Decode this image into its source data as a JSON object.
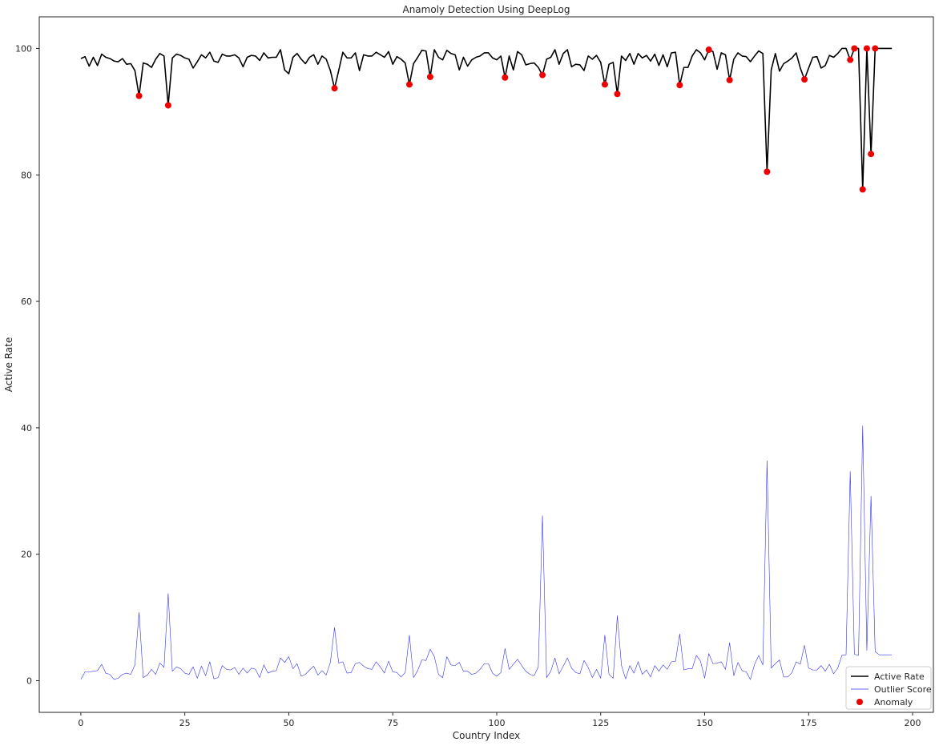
{
  "chart_data": {
    "type": "line",
    "title": "Anamoly Detection Using DeepLog",
    "xlabel": "Country Index",
    "ylabel": "Active Rate",
    "xlim": [
      -10,
      205
    ],
    "ylim": [
      -5,
      105
    ],
    "xticks": [
      0,
      25,
      50,
      75,
      100,
      125,
      150,
      175,
      200
    ],
    "yticks": [
      0,
      20,
      40,
      60,
      80,
      100
    ],
    "grid": false,
    "legend": "bottom-right",
    "series": [
      {
        "name": "Active Rate",
        "color": "#000000",
        "kind": "line",
        "x": [
          0,
          1,
          2,
          3,
          4,
          5,
          6,
          7,
          8,
          9,
          10,
          11,
          12,
          13,
          14,
          15,
          16,
          17,
          18,
          19,
          20,
          21,
          22,
          23,
          24,
          25,
          26,
          27,
          28,
          29,
          30,
          31,
          32,
          33,
          34,
          35,
          36,
          37,
          38,
          39,
          40,
          41,
          42,
          43,
          44,
          45,
          46,
          47,
          48,
          49,
          50,
          51,
          52,
          53,
          54,
          55,
          56,
          57,
          58,
          59,
          60,
          61,
          62,
          63,
          64,
          65,
          66,
          67,
          68,
          69,
          70,
          71,
          72,
          73,
          74,
          75,
          76,
          77,
          78,
          79,
          80,
          81,
          82,
          83,
          84,
          85,
          86,
          87,
          88,
          89,
          90,
          91,
          92,
          93,
          94,
          95,
          96,
          97,
          98,
          99,
          100,
          101,
          102,
          103,
          104,
          105,
          106,
          107,
          108,
          109,
          110,
          111,
          112,
          113,
          114,
          115,
          116,
          117,
          118,
          119,
          120,
          121,
          122,
          123,
          124,
          125,
          126,
          127,
          128,
          129,
          130,
          131,
          132,
          133,
          134,
          135,
          136,
          137,
          138,
          139,
          140,
          141,
          142,
          143,
          144,
          145,
          146,
          147,
          148,
          149,
          150,
          151,
          152,
          153,
          154,
          155,
          156,
          157,
          158,
          159,
          160,
          161,
          162,
          163,
          164,
          165,
          166,
          167,
          168,
          169,
          170,
          171,
          172,
          173,
          174,
          175,
          176,
          177,
          178,
          179,
          180,
          181,
          182,
          183,
          184,
          185,
          186,
          187,
          188,
          189,
          190,
          191,
          192,
          193,
          194,
          195
        ],
        "values": [
          98.4,
          98.7,
          97.2,
          98.6,
          97.3,
          99.1,
          98.6,
          98.4,
          98.0,
          97.9,
          98.4,
          97.5,
          97.6,
          96.5,
          92.5,
          97.7,
          97.5,
          97.0,
          98.3,
          99.2,
          98.8,
          91.0,
          98.5,
          99.1,
          98.9,
          98.5,
          98.3,
          96.9,
          97.9,
          99.0,
          98.5,
          99.4,
          98.0,
          97.8,
          99.1,
          98.8,
          98.8,
          99.0,
          98.5,
          97.1,
          98.6,
          98.9,
          98.8,
          98.1,
          99.3,
          98.5,
          98.6,
          98.6,
          99.8,
          96.6,
          96.0,
          98.6,
          99.2,
          98.3,
          97.6,
          98.6,
          99.0,
          97.5,
          98.8,
          98.3,
          96.5,
          93.7,
          96.5,
          99.4,
          98.5,
          98.5,
          99.3,
          96.5,
          99.0,
          98.8,
          98.8,
          99.4,
          99.0,
          98.6,
          99.5,
          97.5,
          98.7,
          98.3,
          97.7,
          94.3,
          97.6,
          98.6,
          99.7,
          99.6,
          95.5,
          99.8,
          98.6,
          98.2,
          99.7,
          99.2,
          99.0,
          96.6,
          98.6,
          97.2,
          98.2,
          98.6,
          98.8,
          99.3,
          99.3,
          98.5,
          98.2,
          98.8,
          95.4,
          98.8,
          96.6,
          99.5,
          99.0,
          97.4,
          97.6,
          97.7,
          97.0,
          95.8,
          98.3,
          98.6,
          99.8,
          97.5,
          99.2,
          99.8,
          97.1,
          97.5,
          97.4,
          96.5,
          98.8,
          98.3,
          98.9,
          97.8,
          94.3,
          97.5,
          97.8,
          92.8,
          98.8,
          98.1,
          99.2,
          97.5,
          99.2,
          98.5,
          98.9,
          98.0,
          99.1,
          97.3,
          99.0,
          97.1,
          99.3,
          99.4,
          94.2,
          97.0,
          97.0,
          98.8,
          99.8,
          99.3,
          98.2,
          99.8,
          99.5,
          96.7,
          99.3,
          99.0,
          95.0,
          98.3,
          99.3,
          98.8,
          98.7,
          97.9,
          98.8,
          99.6,
          99.2,
          80.5,
          96.6,
          99.2,
          96.4,
          97.6,
          98.0,
          98.5,
          99.3,
          96.9,
          95.1,
          96.9,
          98.6,
          98.7,
          96.9,
          97.3,
          98.9,
          98.6,
          99.2,
          100.0,
          100.0,
          98.2,
          100.0,
          100.0,
          77.7,
          100.0,
          83.3,
          100.0,
          100.0,
          100.0,
          100.0,
          100.0
        ]
      },
      {
        "name": "Outlier Score",
        "color": "#3333ee",
        "kind": "line",
        "x": [
          0,
          1,
          2,
          3,
          4,
          5,
          6,
          7,
          8,
          9,
          10,
          11,
          12,
          13,
          14,
          15,
          16,
          17,
          18,
          19,
          20,
          21,
          22,
          23,
          24,
          25,
          26,
          27,
          28,
          29,
          30,
          31,
          32,
          33,
          34,
          35,
          36,
          37,
          38,
          39,
          40,
          41,
          42,
          43,
          44,
          45,
          46,
          47,
          48,
          49,
          50,
          51,
          52,
          53,
          54,
          55,
          56,
          57,
          58,
          59,
          60,
          61,
          62,
          63,
          64,
          65,
          66,
          67,
          68,
          69,
          70,
          71,
          72,
          73,
          74,
          75,
          76,
          77,
          78,
          79,
          80,
          81,
          82,
          83,
          84,
          85,
          86,
          87,
          88,
          89,
          90,
          91,
          92,
          93,
          94,
          95,
          96,
          97,
          98,
          99,
          100,
          101,
          102,
          103,
          104,
          105,
          106,
          107,
          108,
          109,
          110,
          111,
          112,
          113,
          114,
          115,
          116,
          117,
          118,
          119,
          120,
          121,
          122,
          123,
          124,
          125,
          126,
          127,
          128,
          129,
          130,
          131,
          132,
          133,
          134,
          135,
          136,
          137,
          138,
          139,
          140,
          141,
          142,
          143,
          144,
          145,
          146,
          147,
          148,
          149,
          150,
          151,
          152,
          153,
          154,
          155,
          156,
          157,
          158,
          159,
          160,
          161,
          162,
          163,
          164,
          165,
          166,
          167,
          168,
          169,
          170,
          171,
          172,
          173,
          174,
          175,
          176,
          177,
          178,
          179,
          180,
          181,
          182,
          183,
          184,
          185,
          186,
          187,
          188,
          189,
          190,
          191,
          192,
          193,
          194,
          195
        ],
        "values": [
          0.2,
          1.4,
          1.4,
          1.5,
          1.6,
          2.6,
          1.2,
          1.0,
          0.2,
          0.4,
          1.0,
          1.2,
          1.0,
          2.5,
          10.8,
          0.5,
          0.9,
          1.8,
          1.0,
          2.8,
          2.1,
          13.8,
          1.5,
          2.2,
          1.9,
          1.2,
          1.0,
          2.2,
          0.4,
          2.3,
          0.8,
          3.0,
          0.3,
          0.5,
          2.4,
          1.8,
          1.7,
          2.1,
          1.0,
          2.0,
          1.2,
          2.0,
          1.8,
          0.5,
          2.5,
          1.2,
          1.5,
          1.6,
          3.6,
          2.9,
          3.8,
          1.9,
          2.7,
          0.7,
          1.0,
          1.7,
          2.3,
          0.9,
          1.6,
          0.9,
          2.9,
          8.4,
          2.8,
          3.0,
          1.2,
          1.3,
          2.7,
          2.9,
          2.3,
          1.9,
          1.8,
          3.0,
          2.2,
          1.2,
          3.1,
          1.4,
          1.3,
          0.6,
          1.3,
          7.2,
          0.5,
          1.6,
          3.3,
          3.2,
          5.0,
          3.8,
          1.0,
          0.5,
          3.8,
          2.5,
          2.4,
          2.9,
          1.5,
          1.5,
          1.0,
          1.2,
          1.8,
          2.7,
          2.7,
          1.2,
          0.7,
          1.3,
          5.1,
          1.8,
          2.6,
          3.4,
          2.4,
          1.5,
          1.0,
          0.8,
          2.2,
          26.1,
          0.5,
          1.5,
          3.6,
          1.1,
          2.3,
          3.6,
          2.0,
          1.3,
          1.1,
          3.2,
          2.1,
          0.5,
          1.8,
          0.4,
          7.2,
          1.0,
          0.4,
          10.3,
          2.4,
          0.3,
          2.4,
          1.2,
          3.0,
          1.0,
          1.7,
          0.6,
          2.4,
          1.5,
          2.5,
          1.8,
          3.0,
          3.1,
          7.4,
          1.7,
          1.9,
          1.9,
          4.0,
          3.1,
          0.4,
          4.3,
          2.7,
          2.8,
          3.0,
          1.8,
          6.0,
          0.8,
          2.9,
          1.6,
          1.4,
          0.2,
          2.6,
          4.0,
          2.5,
          34.8,
          2.0,
          2.7,
          3.3,
          0.6,
          0.6,
          1.3,
          3.0,
          2.6,
          5.6,
          2.0,
          1.7,
          1.7,
          2.4,
          1.5,
          2.6,
          1.1,
          2.0,
          4.0,
          4.1,
          33.1,
          4.2,
          4.0,
          40.3,
          4.8,
          29.2,
          4.6,
          4.1,
          4.1,
          4.1,
          4.1
        ]
      },
      {
        "name": "Anomaly",
        "color": "#ee0000",
        "kind": "scatter",
        "x": [
          14,
          21,
          61,
          79,
          84,
          102,
          111,
          126,
          129,
          144,
          151,
          156,
          165,
          174,
          185,
          186,
          188,
          189,
          190,
          191
        ],
        "values": [
          92.5,
          91.0,
          93.7,
          94.3,
          95.5,
          95.4,
          95.8,
          94.3,
          92.8,
          94.2,
          99.8,
          95.0,
          80.5,
          95.1,
          98.2,
          100.0,
          77.7,
          100.0,
          83.3,
          100.0
        ]
      }
    ]
  }
}
